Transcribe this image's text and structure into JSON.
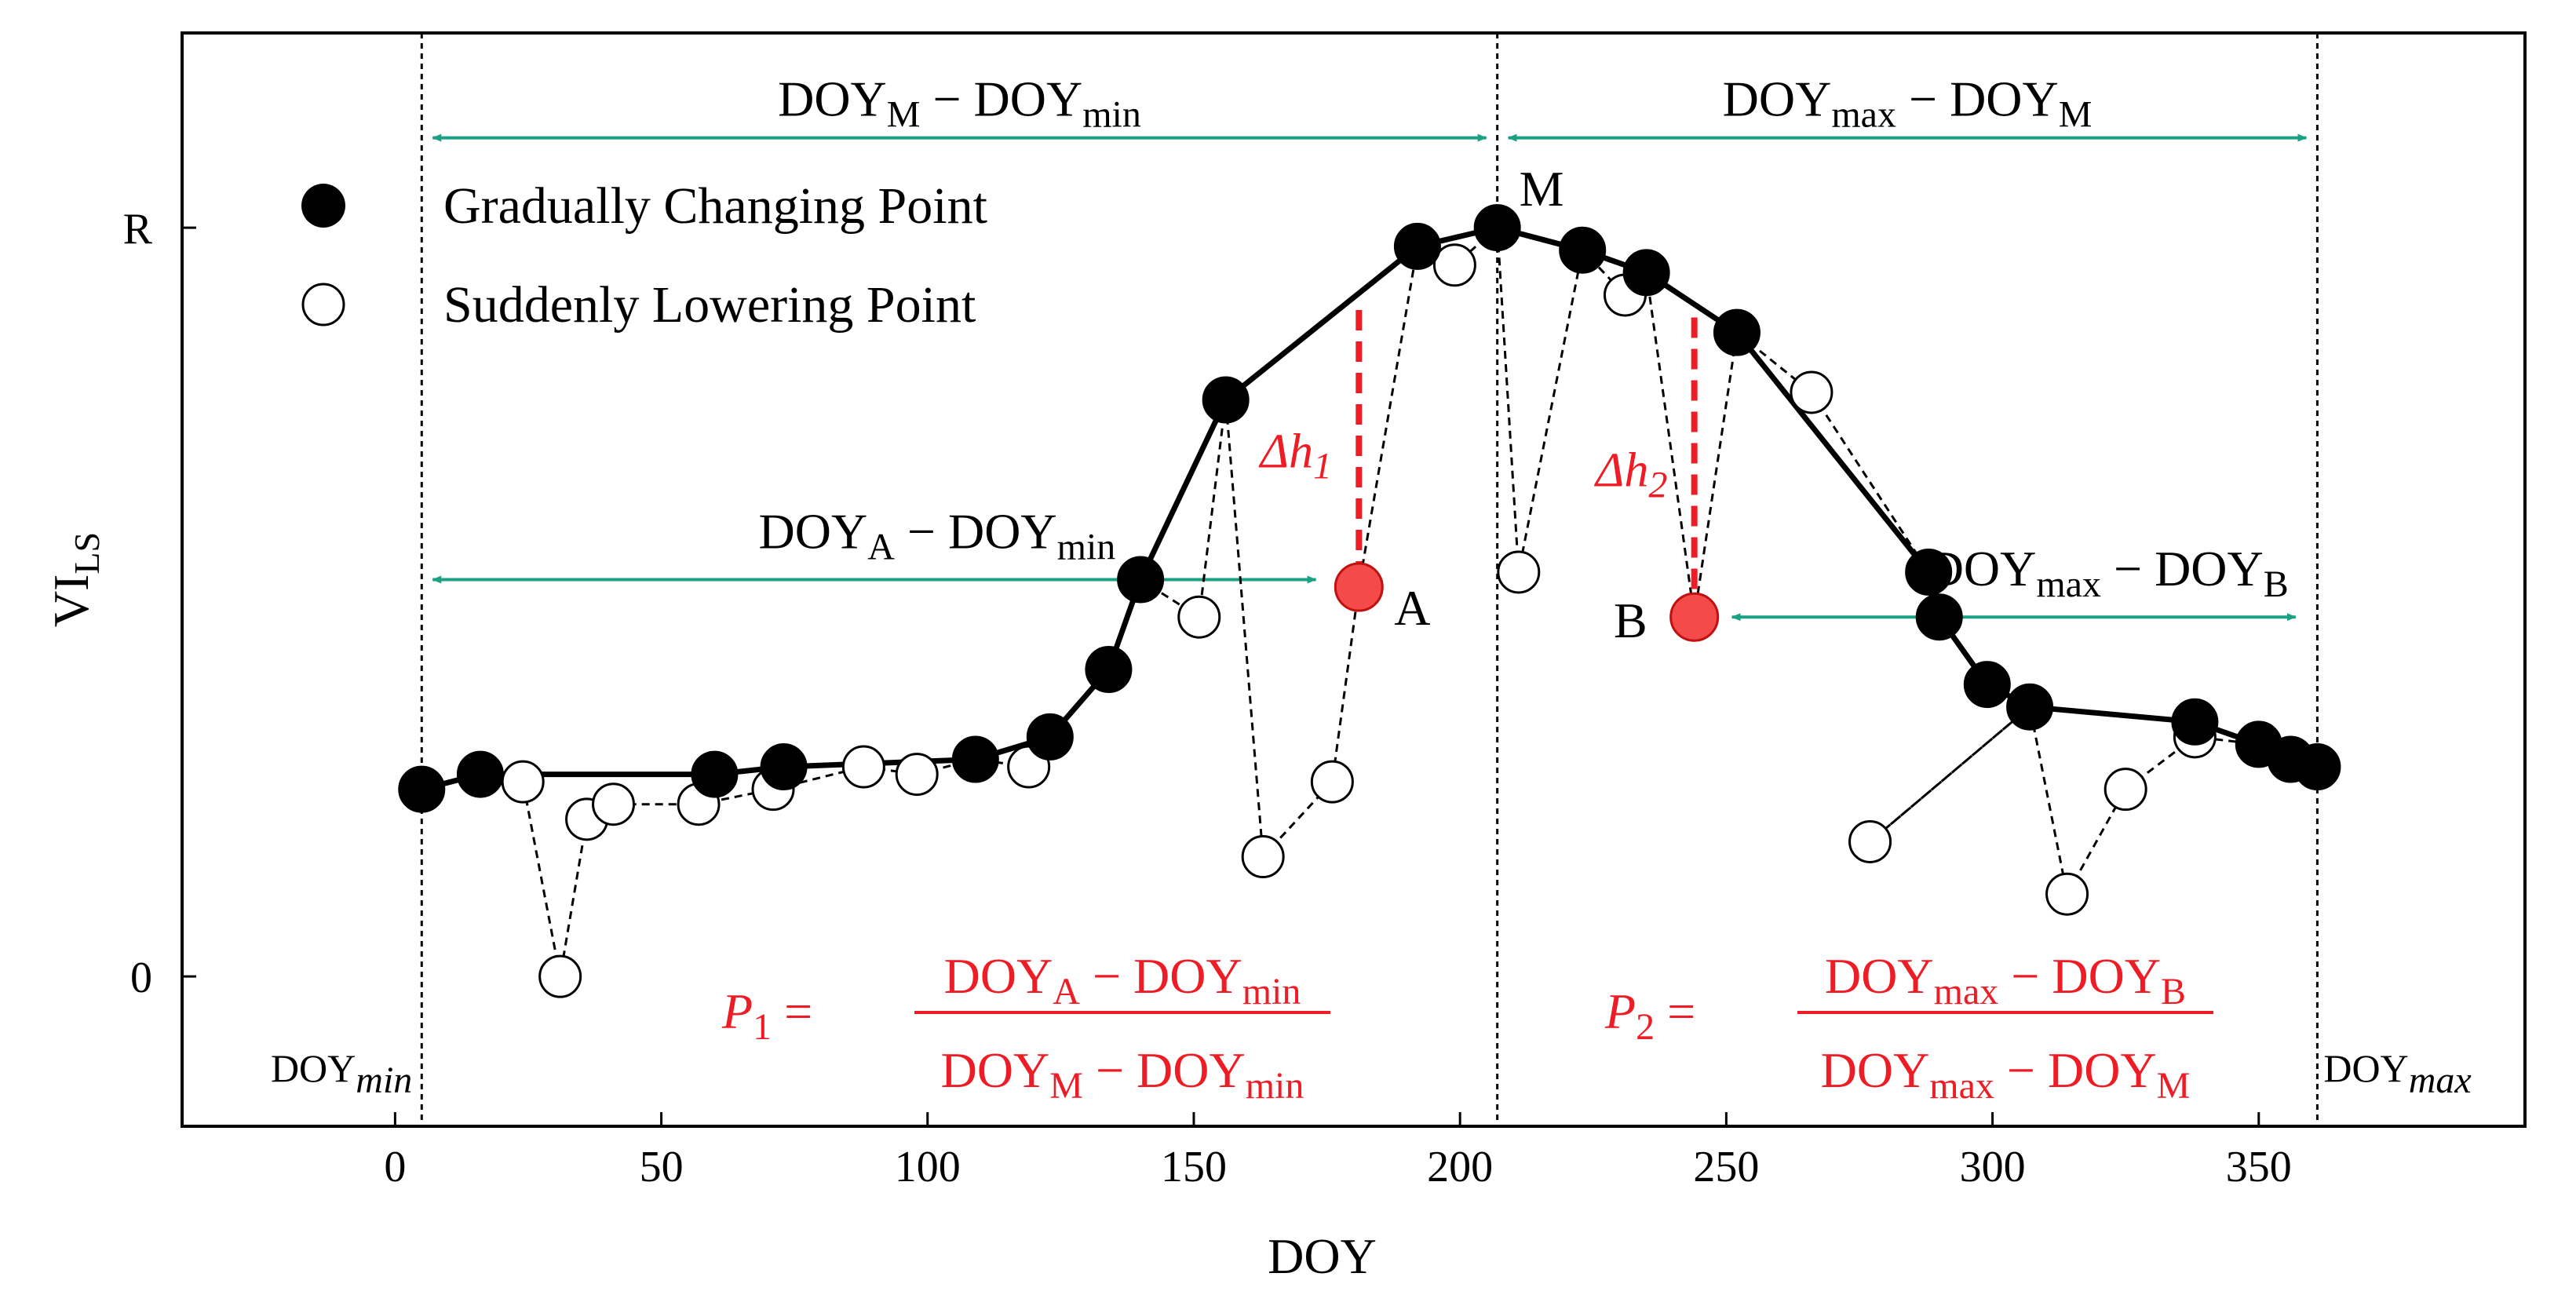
{
  "chart_data": {
    "type": "scatter",
    "xlabel": "DOY",
    "ylabel": {
      "main": "VI",
      "sub": "LS"
    },
    "xlim": [
      -40,
      400
    ],
    "ylim": [
      -0.2,
      1.26
    ],
    "x_ticks": [
      0,
      50,
      100,
      150,
      200,
      250,
      300,
      350
    ],
    "y_ticks": [
      {
        "value": 0,
        "label": "0"
      },
      {
        "value": 1,
        "label": "R"
      }
    ],
    "legend": {
      "position": "top-left",
      "entries": [
        {
          "marker": "filled-circle",
          "label": "Gradually Changing Point"
        },
        {
          "marker": "open-circle",
          "label": "Suddenly Lowering Point"
        }
      ]
    },
    "series": [
      {
        "name": "Gradually Changing Point",
        "style": "solid",
        "x": [
          5,
          16,
          60,
          73,
          109,
          123,
          134,
          140,
          156,
          192,
          207,
          223,
          235,
          252,
          288,
          290,
          299,
          307,
          338,
          350,
          356,
          361
        ],
        "y": [
          0.25,
          0.27,
          0.27,
          0.28,
          0.29,
          0.32,
          0.41,
          0.53,
          0.77,
          0.975,
          1.0,
          0.97,
          0.94,
          0.86,
          0.54,
          0.48,
          0.39,
          0.36,
          0.34,
          0.31,
          0.29,
          0.28
        ]
      },
      {
        "name": "Suddenly Lowering Point",
        "style": "dashed",
        "x": [
          5,
          16,
          24,
          31,
          36,
          41,
          57,
          71,
          88,
          98,
          109,
          119,
          123,
          134,
          140,
          151,
          156,
          163,
          176,
          181,
          192,
          199,
          207,
          211,
          223,
          231,
          235,
          244,
          252,
          266,
          288,
          290,
          299,
          307,
          277,
          307,
          314,
          325,
          338,
          350,
          356,
          361
        ],
        "y": [
          0.25,
          0.27,
          0.26,
          0.0,
          0.21,
          0.23,
          0.23,
          0.25,
          0.28,
          0.27,
          0.29,
          0.28,
          0.32,
          0.41,
          0.53,
          0.48,
          0.77,
          0.16,
          0.26,
          0.52,
          0.975,
          0.95,
          1.0,
          0.54,
          0.97,
          0.91,
          0.94,
          0.48,
          0.86,
          0.78,
          0.54,
          0.48,
          0.39,
          0.36,
          0.18,
          0.36,
          0.11,
          0.25,
          0.32,
          0.31,
          0.29,
          0.28
        ]
      }
    ],
    "open_points": {
      "x": [
        24,
        31,
        36,
        41,
        57,
        71,
        88,
        98,
        119,
        151,
        163,
        176,
        199,
        211,
        231,
        266,
        277,
        314,
        325,
        338
      ],
      "y": [
        0.26,
        0.0,
        0.21,
        0.23,
        0.23,
        0.25,
        0.28,
        0.27,
        0.28,
        0.48,
        0.16,
        0.26,
        0.95,
        0.54,
        0.91,
        0.78,
        0.18,
        0.11,
        0.25,
        0.32
      ]
    },
    "highlight_points": [
      {
        "label": "A",
        "x": 181,
        "y": 0.52,
        "dh_top_y": 0.89,
        "dh_label_main": "Δh",
        "dh_label_sub": "1"
      },
      {
        "label": "B",
        "x": 244,
        "y": 0.48,
        "dh_top_y": 0.88,
        "dh_label_main": "Δh",
        "dh_label_sub": "2"
      }
    ],
    "peak_point": {
      "label": "M",
      "x": 207,
      "y": 1.0
    },
    "vertical_lines": [
      {
        "x": 5,
        "label_main": "DOY",
        "label_sub": "min"
      },
      {
        "x": 207,
        "label_main": "",
        "label_sub": ""
      },
      {
        "x": 361,
        "label_main": "DOY",
        "label_sub": "max"
      }
    ],
    "range_arrows": [
      {
        "x_from": 5,
        "x_to": 207,
        "y": 1.12,
        "parts": [
          [
            "DOY",
            ""
          ],
          [
            "M",
            "sub"
          ],
          [
            " − DOY",
            ""
          ],
          [
            "min",
            "sub"
          ]
        ]
      },
      {
        "x_from": 207,
        "x_to": 361,
        "y": 1.12,
        "parts": [
          [
            "DOY",
            ""
          ],
          [
            "max",
            "sub"
          ],
          [
            " − DOY",
            ""
          ],
          [
            "M",
            "sub"
          ]
        ]
      },
      {
        "x_from": 5,
        "x_to": 175,
        "y": 0.53,
        "parts": [
          [
            "DOY",
            ""
          ],
          [
            "A",
            "sub"
          ],
          [
            " − DOY",
            ""
          ],
          [
            "min",
            "sub"
          ]
        ]
      },
      {
        "x_from": 249,
        "x_to": 359,
        "y": 0.48,
        "parts": [
          [
            "DOY",
            ""
          ],
          [
            "max",
            "sub"
          ],
          [
            " − DOY",
            ""
          ],
          [
            "B",
            "sub"
          ]
        ]
      }
    ],
    "formulas": [
      {
        "lhs_main": "P",
        "lhs_sub": "1",
        "numerator": [
          [
            "DOY",
            ""
          ],
          [
            "A",
            "sub"
          ],
          [
            " − DOY",
            ""
          ],
          [
            "min",
            "sub"
          ]
        ],
        "denominator": [
          [
            "DOY",
            ""
          ],
          [
            "M",
            "sub"
          ],
          [
            " − DOY",
            ""
          ],
          [
            "min",
            "sub"
          ]
        ]
      },
      {
        "lhs_main": "P",
        "lhs_sub": "2",
        "numerator": [
          [
            "DOY",
            ""
          ],
          [
            "max",
            "sub"
          ],
          [
            " − DOY",
            ""
          ],
          [
            "B",
            "sub"
          ]
        ],
        "denominator": [
          [
            "DOY",
            ""
          ],
          [
            "max",
            "sub"
          ],
          [
            " − DOY",
            ""
          ],
          [
            "M",
            "sub"
          ]
        ]
      }
    ],
    "colors": {
      "series_line": "#000000",
      "filled_marker": "#000000",
      "open_marker_fill": "#ffffff",
      "highlight_marker": "#f44a4a",
      "highlight_line": "#ee1c25",
      "arrow": "#1aa184",
      "formula_text": "#ee1c25"
    }
  }
}
